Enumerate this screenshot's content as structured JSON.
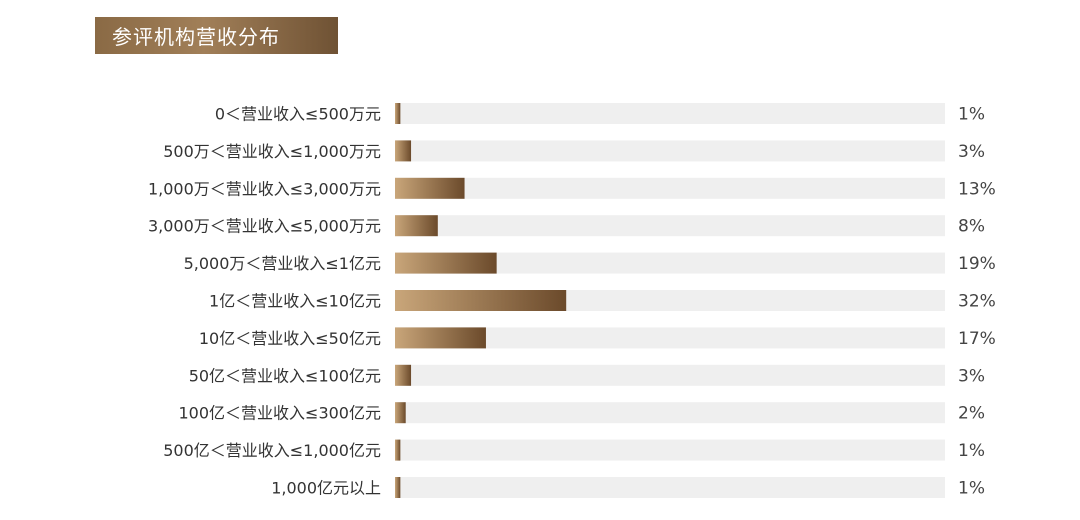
{
  "title": "参评机构营收分布",
  "colors": {
    "track": "#efefef",
    "bar_light": "#c9a67a",
    "bar_dark": "#6b4a2b",
    "title_bg": "#8a6a45"
  },
  "chart_data": {
    "type": "bar",
    "orientation": "horizontal",
    "categories": [
      "0＜营业收入≤500万元",
      "500万＜营业收入≤1,000万元",
      "1,000万＜营业收入≤3,000万元",
      "3,000万＜营业收入≤5,000万元",
      "5,000万＜营业收入≤1亿元",
      "1亿＜营业收入≤10亿元",
      "10亿＜营业收入≤50亿元",
      "50亿＜营业收入≤100亿元",
      "100亿＜营业收入≤300亿元",
      "500亿＜营业收入≤1,000亿元",
      "1,000亿元以上"
    ],
    "values": [
      1,
      3,
      13,
      8,
      19,
      32,
      17,
      3,
      2,
      1,
      1
    ],
    "value_labels": [
      "1%",
      "3%",
      "13%",
      "8%",
      "19%",
      "32%",
      "17%",
      "3%",
      "2%",
      "1%",
      "1%"
    ],
    "unit": "%",
    "xlim": [
      0,
      100
    ],
    "grid": false,
    "legend": "none"
  }
}
